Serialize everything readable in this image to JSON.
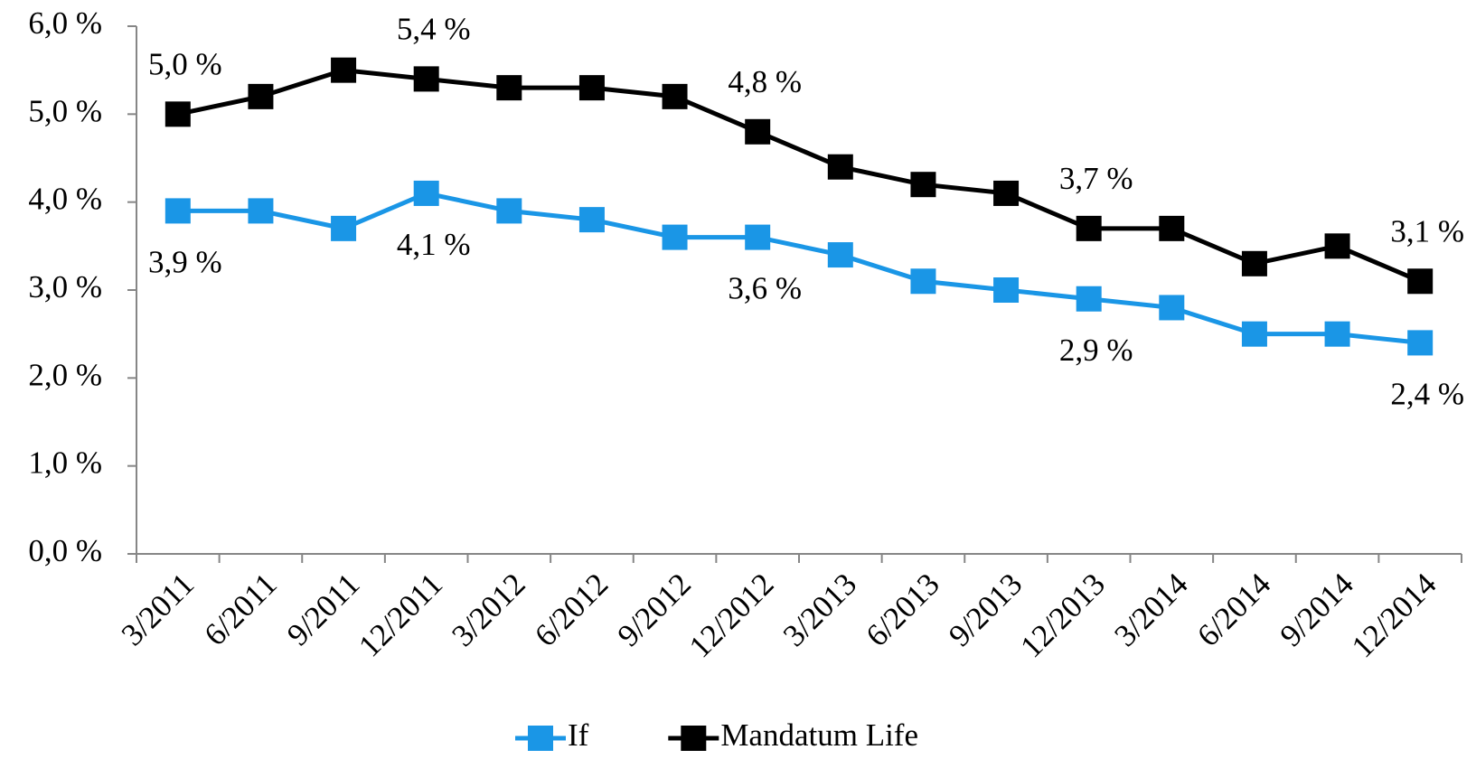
{
  "chart_data": {
    "type": "line",
    "categories": [
      "3/2011",
      "6/2011",
      "9/2011",
      "12/2011",
      "3/2012",
      "6/2012",
      "9/2012",
      "12/2012",
      "3/2013",
      "6/2013",
      "9/2013",
      "12/2013",
      "3/2014",
      "6/2014",
      "9/2014",
      "12/2014"
    ],
    "series": [
      {
        "name": "If",
        "color": "#1a96e6",
        "values": [
          3.9,
          3.9,
          3.7,
          4.1,
          3.9,
          3.8,
          3.6,
          3.6,
          3.4,
          3.1,
          3.0,
          2.9,
          2.8,
          2.5,
          2.5,
          2.4
        ],
        "value_labels": [
          "3,9 %",
          null,
          null,
          "4,1 %",
          null,
          null,
          null,
          "3,6 %",
          null,
          null,
          null,
          "2,9 %",
          null,
          null,
          null,
          "2,4 %"
        ]
      },
      {
        "name": "Mandatum Life",
        "color": "#000000",
        "values": [
          5.0,
          5.2,
          5.5,
          5.4,
          5.3,
          5.3,
          5.2,
          4.8,
          4.4,
          4.2,
          4.1,
          3.7,
          3.7,
          3.3,
          3.5,
          3.1
        ],
        "value_labels": [
          "5,0 %",
          null,
          null,
          "5,4 %",
          null,
          null,
          null,
          "4,8 %",
          null,
          null,
          null,
          "3,7 %",
          null,
          null,
          null,
          "3,1 %"
        ]
      }
    ],
    "ylim": [
      0,
      6
    ],
    "yticks": [
      {
        "value": 0,
        "label": "0,0 %"
      },
      {
        "value": 1,
        "label": "1,0 %"
      },
      {
        "value": 2,
        "label": "2,0 %"
      },
      {
        "value": 3,
        "label": "3,0 %"
      },
      {
        "value": 4,
        "label": "4,0 %"
      },
      {
        "value": 5,
        "label": "5,0 %"
      },
      {
        "value": 6,
        "label": "6,0 %"
      }
    ],
    "legend": "bottom"
  }
}
